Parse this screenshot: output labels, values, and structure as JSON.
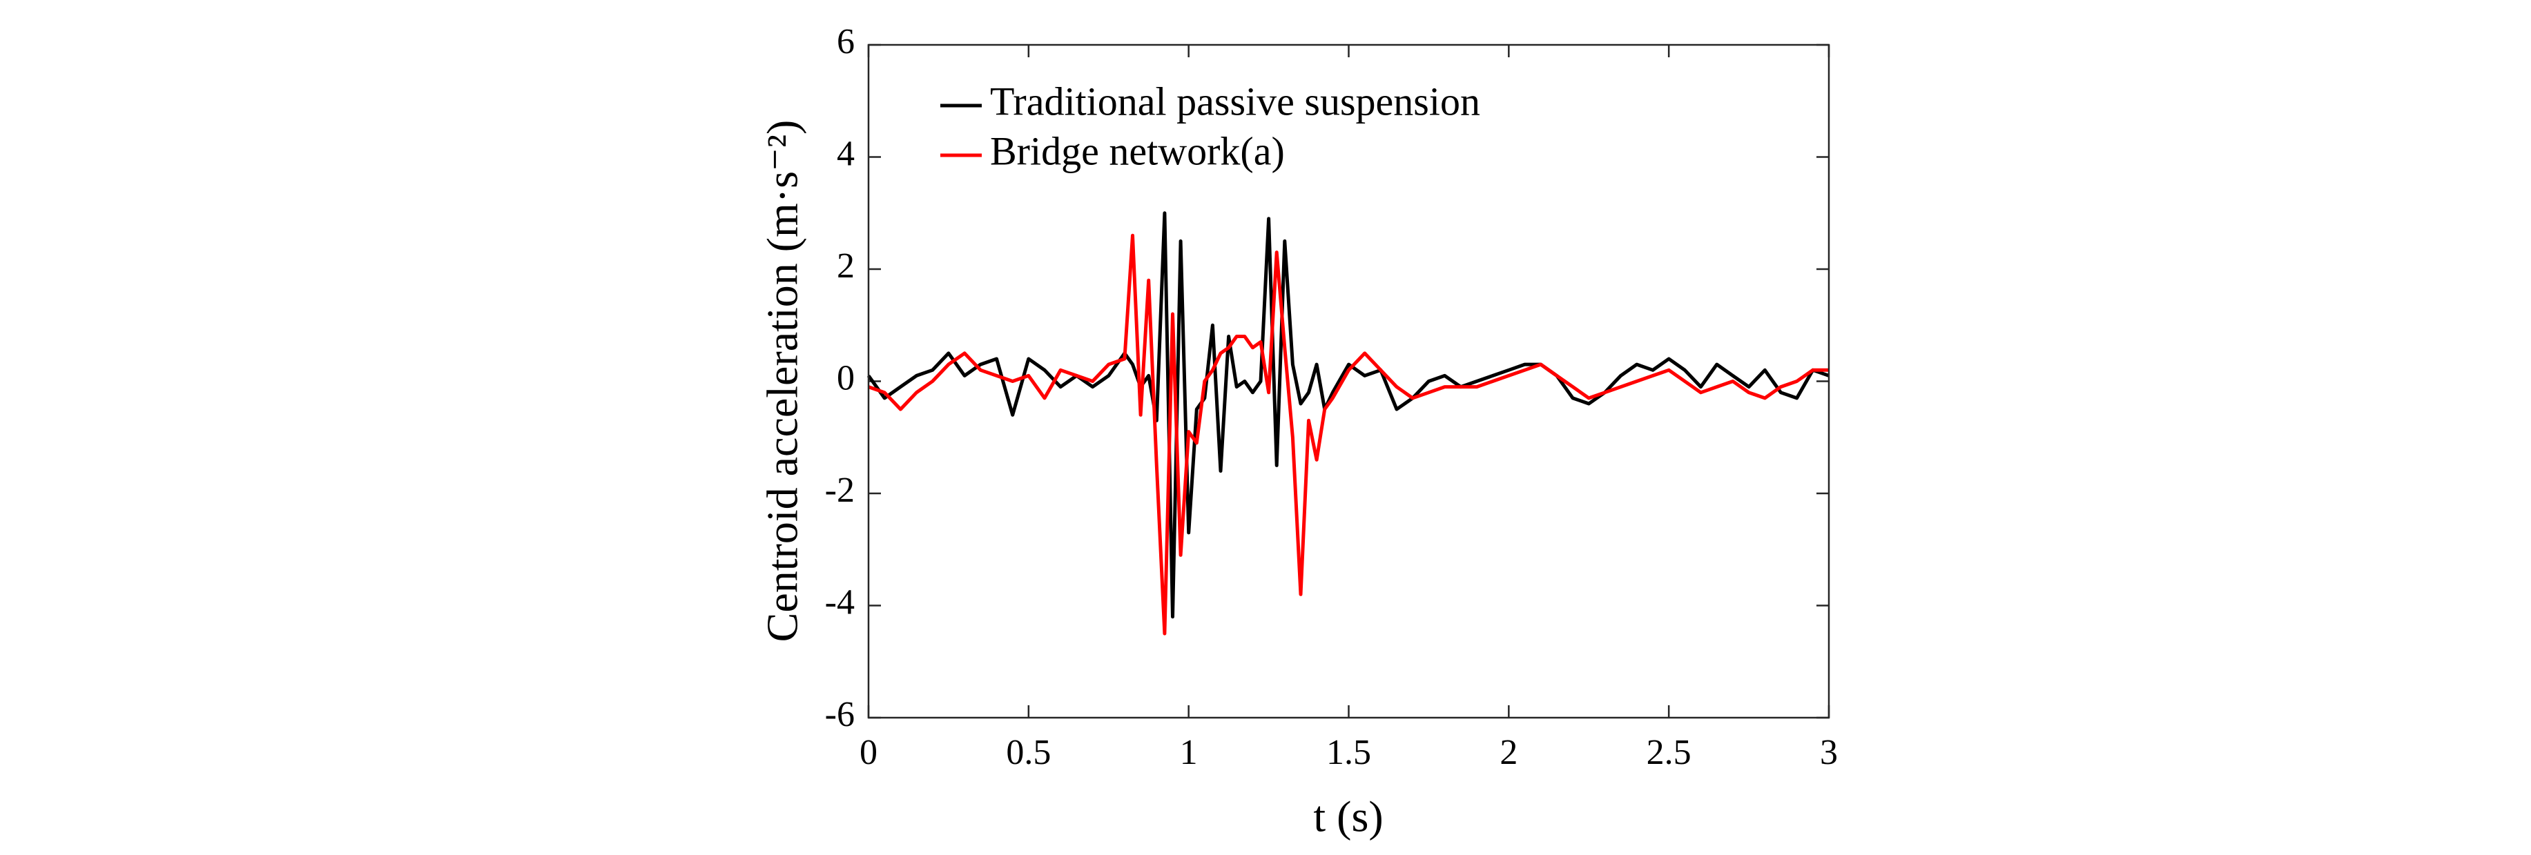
{
  "chart_data": {
    "type": "line",
    "x_label": "t (s)",
    "y_label": "Centroid acceleration (m·s⁻²)",
    "x": [
      0,
      0.05,
      0.1,
      0.15,
      0.2,
      0.25,
      0.3,
      0.35,
      0.4,
      0.45,
      0.5,
      0.55,
      0.6,
      0.65,
      0.7,
      0.75,
      0.8,
      0.825,
      0.85,
      0.875,
      0.9,
      0.925,
      0.95,
      0.975,
      1.0,
      1.025,
      1.05,
      1.075,
      1.1,
      1.125,
      1.15,
      1.175,
      1.2,
      1.225,
      1.25,
      1.275,
      1.3,
      1.325,
      1.35,
      1.375,
      1.4,
      1.425,
      1.45,
      1.5,
      1.55,
      1.6,
      1.65,
      1.7,
      1.75,
      1.8,
      1.85,
      1.9,
      1.95,
      2.0,
      2.05,
      2.1,
      2.15,
      2.2,
      2.25,
      2.3,
      2.35,
      2.4,
      2.45,
      2.5,
      2.55,
      2.6,
      2.65,
      2.7,
      2.75,
      2.8,
      2.85,
      2.9,
      2.95,
      3.0
    ],
    "series": [
      {
        "name": "Traditional passive suspension",
        "color": "#000000",
        "values": [
          0.1,
          -0.3,
          -0.1,
          0.1,
          0.2,
          0.5,
          0.1,
          0.3,
          0.4,
          -0.6,
          0.4,
          0.2,
          -0.1,
          0.1,
          -0.1,
          0.1,
          0.5,
          0.3,
          -0.1,
          0.1,
          -0.7,
          3.0,
          -4.2,
          2.5,
          -2.7,
          -0.5,
          -0.3,
          1.0,
          -1.6,
          0.8,
          -0.1,
          0.0,
          -0.2,
          0.0,
          2.9,
          -1.5,
          2.5,
          0.3,
          -0.4,
          -0.2,
          0.3,
          -0.5,
          -0.2,
          0.3,
          0.1,
          0.2,
          -0.5,
          -0.3,
          0.0,
          0.1,
          -0.1,
          0.0,
          0.1,
          0.2,
          0.3,
          0.3,
          0.1,
          -0.3,
          -0.4,
          -0.2,
          0.1,
          0.3,
          0.2,
          0.4,
          0.2,
          -0.1,
          0.3,
          0.1,
          -0.1,
          0.2,
          -0.2,
          -0.3,
          0.2,
          0.1
        ]
      },
      {
        "name": "Bridge network(a)",
        "color": "#ff0000",
        "values": [
          -0.1,
          -0.2,
          -0.5,
          -0.2,
          0.0,
          0.3,
          0.5,
          0.2,
          0.1,
          0.0,
          0.1,
          -0.3,
          0.2,
          0.1,
          0.0,
          0.3,
          0.4,
          2.6,
          -0.6,
          1.8,
          -1.5,
          -4.5,
          1.2,
          -3.1,
          -0.9,
          -1.1,
          0.0,
          0.2,
          0.5,
          0.6,
          0.8,
          0.8,
          0.6,
          0.7,
          -0.2,
          2.3,
          0.6,
          -1.0,
          -3.8,
          -0.7,
          -1.4,
          -0.5,
          -0.3,
          0.2,
          0.5,
          0.2,
          -0.1,
          -0.3,
          -0.2,
          -0.1,
          -0.1,
          -0.1,
          0.0,
          0.1,
          0.2,
          0.3,
          0.1,
          -0.1,
          -0.3,
          -0.2,
          -0.1,
          0.0,
          0.1,
          0.2,
          0.0,
          -0.2,
          -0.1,
          0.0,
          -0.2,
          -0.3,
          -0.1,
          0.0,
          0.2,
          0.2
        ]
      }
    ],
    "xlim": [
      0,
      3
    ],
    "xticks": [
      0,
      0.5,
      1,
      1.5,
      2,
      2.5,
      3
    ],
    "ylim": [
      -6,
      6
    ],
    "yticks": [
      -6,
      -4,
      -2,
      0,
      2,
      4,
      6
    ],
    "legend": "upper left",
    "grid": false
  }
}
